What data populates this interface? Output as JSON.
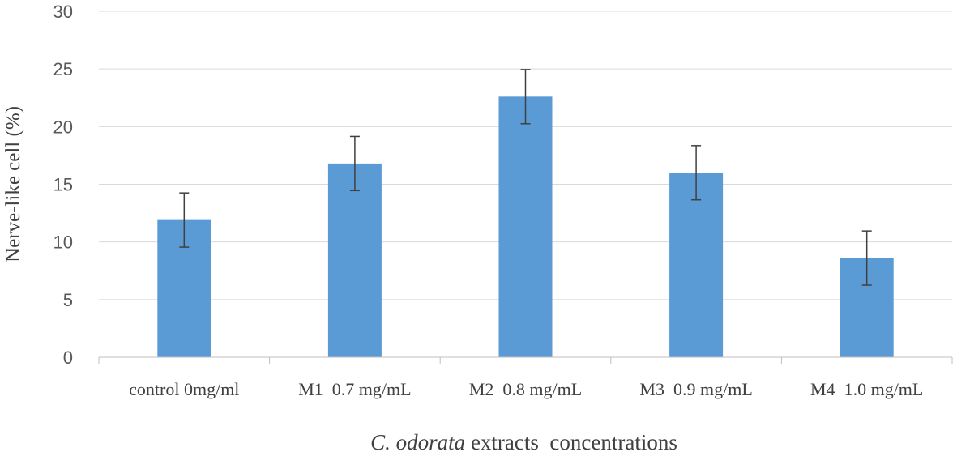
{
  "chart_data": {
    "type": "bar",
    "categories": [
      "control 0mg/ml",
      "M1  0.7 mg/mL",
      "M2  0.8 mg/mL",
      "M3  0.9 mg/mL",
      "M4  1.0 mg/mL"
    ],
    "values": [
      11.9,
      16.8,
      22.6,
      16.0,
      8.6
    ],
    "errors": [
      2.35,
      2.35,
      2.35,
      2.35,
      2.35
    ],
    "ylim": [
      0,
      30
    ],
    "yticks": [
      0,
      5,
      10,
      15,
      20,
      25,
      30
    ],
    "ylabel": "Nerve-like cell (%)",
    "xlabel_italic": "C. odorata",
    "xlabel_rest": " extracts  concentrations",
    "grid": true,
    "bar_color": "#5b9bd5",
    "error_bar_color": "#404040",
    "grid_color": "#d9d9d9"
  }
}
